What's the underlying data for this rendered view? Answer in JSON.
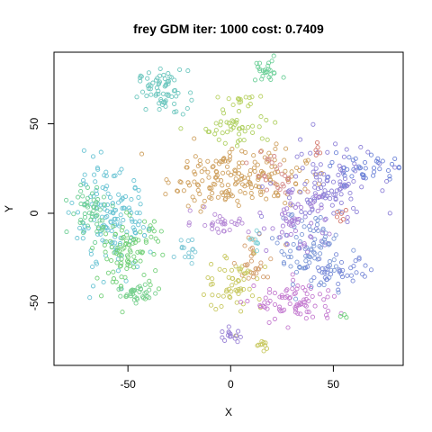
{
  "chart_data": {
    "type": "scatter",
    "title": "frey GDM iter: 1000 cost: 0.7409",
    "xlabel": "X",
    "ylabel": "Y",
    "xlim": [
      -86,
      84
    ],
    "ylim": [
      -85,
      90
    ],
    "xticks": [
      -50,
      0,
      50
    ],
    "yticks": [
      -50,
      0,
      50
    ],
    "grid": false,
    "legend": "none",
    "marker": "open-circle",
    "clusters": [
      {
        "color": "#6fd09a",
        "cx": 17,
        "cy": 79,
        "sx": 4,
        "sy": 3,
        "n": 25
      },
      {
        "color": "#6ec7bf",
        "cx": -33,
        "cy": 68,
        "sx": 6,
        "sy": 6,
        "n": 70
      },
      {
        "color": "#b9d264",
        "cx": 4,
        "cy": 63,
        "sx": 4,
        "sy": 2,
        "n": 15
      },
      {
        "color": "#b0d062",
        "cx": 5,
        "cy": 48,
        "sx": 9,
        "sy": 5,
        "n": 45
      },
      {
        "color": "#cfa160",
        "cx": 3,
        "cy": 20,
        "sx": 17,
        "sy": 8,
        "n": 190
      },
      {
        "color": "#d48a8a",
        "cx": 22,
        "cy": 21,
        "sx": 6,
        "sy": 8,
        "n": 25
      },
      {
        "color": "#8f82d8",
        "cx": 45,
        "cy": 14,
        "sx": 12,
        "sy": 12,
        "n": 120
      },
      {
        "color": "#6f85d8",
        "cx": 65,
        "cy": 25,
        "sx": 8,
        "sy": 4,
        "n": 40
      },
      {
        "color": "#6ac4d4",
        "cx": -58,
        "cy": -5,
        "sx": 9,
        "sy": 14,
        "n": 150
      },
      {
        "color": "#74d07a",
        "cx": -50,
        "cy": -22,
        "sx": 8,
        "sy": 10,
        "n": 100
      },
      {
        "color": "#6fcf96",
        "cx": -68,
        "cy": 2,
        "sx": 5,
        "sy": 7,
        "n": 50
      },
      {
        "color": "#79d090",
        "cx": -45,
        "cy": -45,
        "sx": 5,
        "sy": 3,
        "n": 35
      },
      {
        "color": "#7ec8d6",
        "cx": -20,
        "cy": -20,
        "sx": 3,
        "sy": 4,
        "n": 15
      },
      {
        "color": "#b68ad6",
        "cx": -5,
        "cy": -5,
        "sx": 7,
        "sy": 3,
        "n": 30
      },
      {
        "color": "#c8c860",
        "cx": 2,
        "cy": -38,
        "sx": 7,
        "sy": 9,
        "n": 60
      },
      {
        "color": "#d4a070",
        "cx": 12,
        "cy": -28,
        "sx": 6,
        "sy": 6,
        "n": 30
      },
      {
        "color": "#c47bd0",
        "cx": 32,
        "cy": -50,
        "sx": 10,
        "sy": 6,
        "n": 80
      },
      {
        "color": "#7f9ad8",
        "cx": 38,
        "cy": -20,
        "sx": 8,
        "sy": 10,
        "n": 90
      },
      {
        "color": "#7a8bd8",
        "cx": 52,
        "cy": -33,
        "sx": 8,
        "sy": 4,
        "n": 40
      },
      {
        "color": "#a77fd6",
        "cx": 32,
        "cy": -5,
        "sx": 7,
        "sy": 8,
        "n": 50
      },
      {
        "color": "#9a82d6",
        "cx": 0,
        "cy": -69,
        "sx": 3,
        "sy": 2,
        "n": 15
      },
      {
        "color": "#c8c860",
        "cx": 15,
        "cy": -74,
        "sx": 2,
        "sy": 2,
        "n": 10
      },
      {
        "color": "#7fd0d6",
        "cx": 12,
        "cy": -15,
        "sx": 2,
        "sy": 3,
        "n": 8
      },
      {
        "color": "#d47a70",
        "cx": 54,
        "cy": -1,
        "sx": 2,
        "sy": 2,
        "n": 6
      },
      {
        "color": "#d47a70",
        "cx": 42,
        "cy": 35,
        "sx": 2,
        "sy": 2,
        "n": 5
      },
      {
        "color": "#6ed07a",
        "cx": 56,
        "cy": -58,
        "sx": 1,
        "sy": 1,
        "n": 3
      }
    ]
  }
}
